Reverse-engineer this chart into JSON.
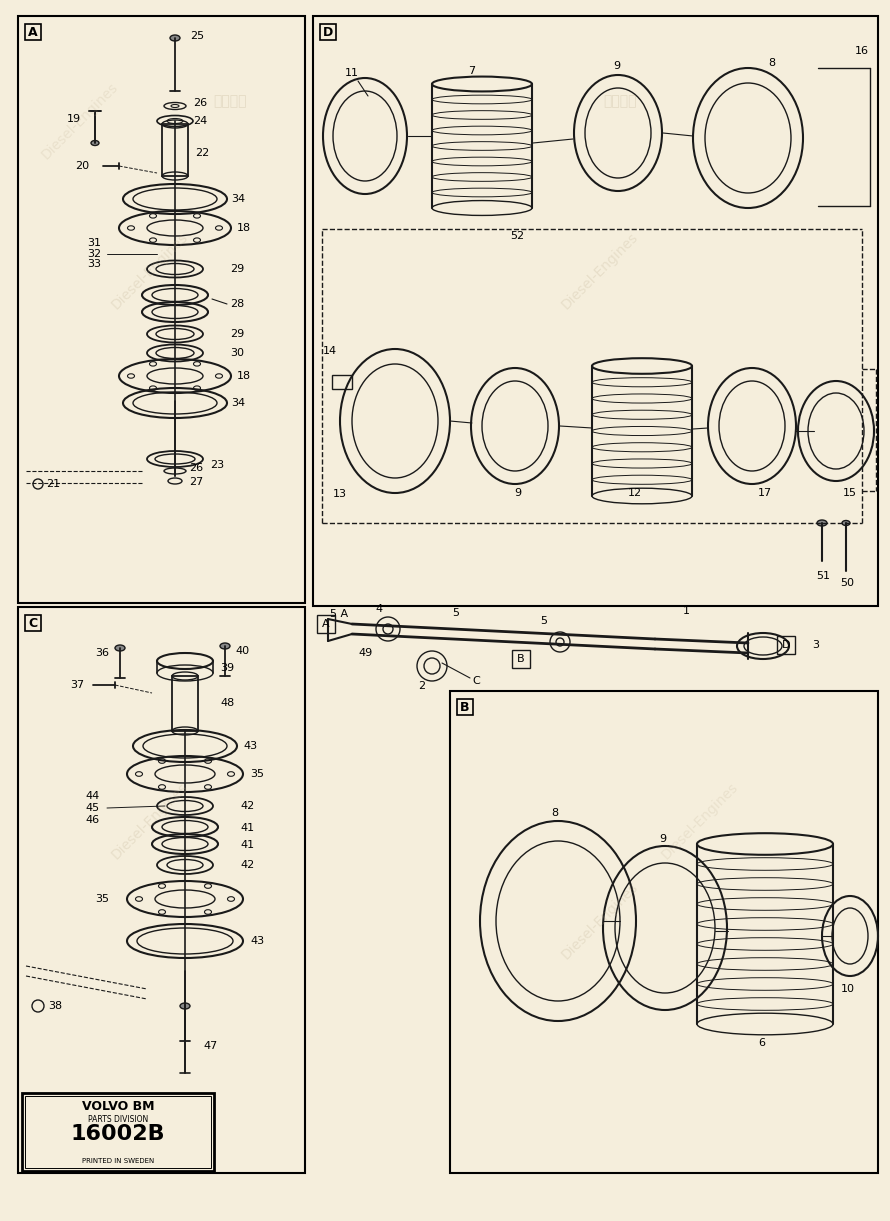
{
  "bg_color": "#f5eedc",
  "line_color": "#1a1a1a",
  "volvo_text_1": "VOLVO BM",
  "volvo_text_2": "PARTS DIVISION",
  "volvo_text_3": "16002B",
  "volvo_text_4": "PRINTED IN SWEDEN"
}
